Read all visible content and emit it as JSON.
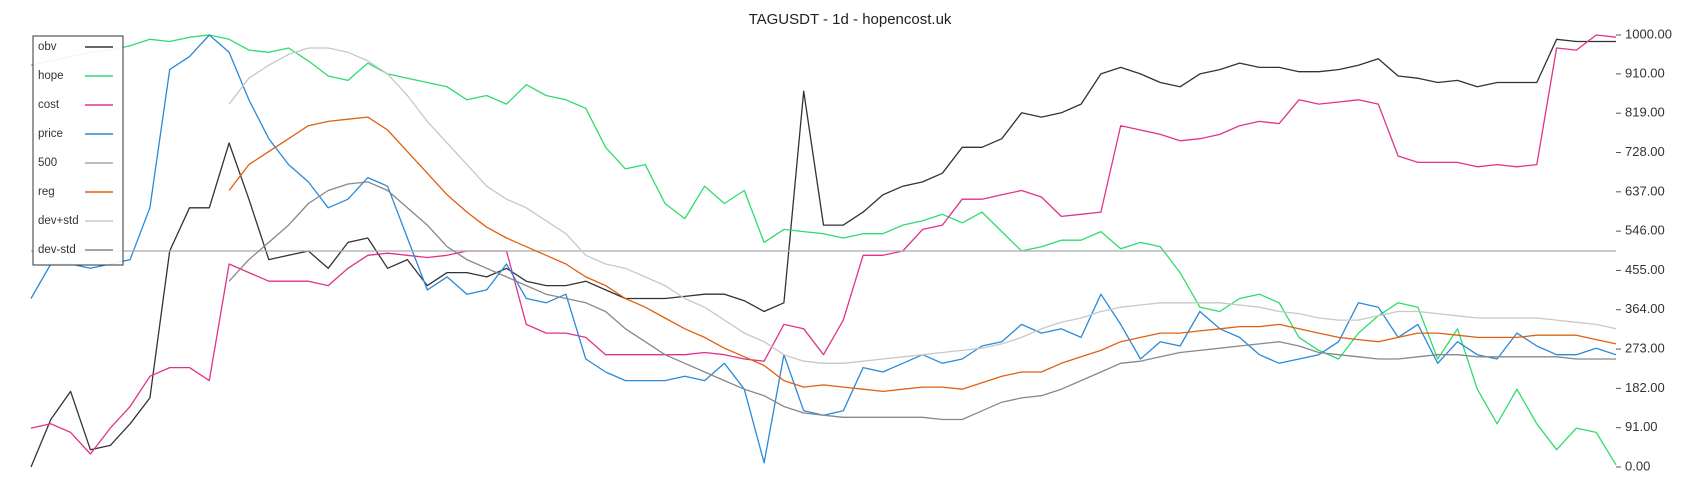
{
  "chart_data": {
    "type": "line",
    "title": "TAGUSDT - 1d - hopencost.uk",
    "ylim": [
      0,
      1000
    ],
    "yticks": [
      {
        "value": 0,
        "label": "0.00"
      },
      {
        "value": 91,
        "label": "91.00"
      },
      {
        "value": 182,
        "label": "182.00"
      },
      {
        "value": 273,
        "label": "273.00"
      },
      {
        "value": 364,
        "label": "364.00"
      },
      {
        "value": 455,
        "label": "455.00"
      },
      {
        "value": 546,
        "label": "546.00"
      },
      {
        "value": 637,
        "label": "637.00"
      },
      {
        "value": 728,
        "label": "728.00"
      },
      {
        "value": 819,
        "label": "819.00"
      },
      {
        "value": 910,
        "label": "910.00"
      },
      {
        "value": 1000,
        "label": "1000.00"
      }
    ],
    "grid": false,
    "legend": "upper left",
    "series": [
      {
        "name": "obv",
        "color": "#333333",
        "values": [
          0,
          110,
          175,
          40,
          50,
          100,
          160,
          500,
          600,
          600,
          750,
          620,
          480,
          490,
          500,
          460,
          520,
          530,
          460,
          480,
          420,
          450,
          450,
          440,
          460,
          430,
          420,
          420,
          430,
          410,
          390,
          390,
          390,
          395,
          400,
          400,
          385,
          360,
          380,
          870,
          560,
          560,
          590,
          630,
          650,
          660,
          680,
          740,
          740,
          760,
          820,
          810,
          820,
          840,
          910,
          925,
          910,
          890,
          880,
          910,
          920,
          935,
          925,
          925,
          915,
          915,
          920,
          930,
          945,
          905,
          900,
          890,
          895,
          880,
          890,
          890,
          890,
          990,
          985,
          985,
          985
        ]
      },
      {
        "name": "hope",
        "color": "#2edc6e",
        "values": [
          930,
          940,
          950,
          960,
          965,
          975,
          990,
          985,
          995,
          1000,
          990,
          965,
          960,
          970,
          940,
          905,
          895,
          935,
          910,
          900,
          890,
          880,
          850,
          860,
          840,
          885,
          860,
          850,
          830,
          740,
          690,
          700,
          610,
          575,
          650,
          610,
          640,
          520,
          550,
          545,
          540,
          530,
          540,
          540,
          560,
          570,
          585,
          565,
          590,
          545,
          500,
          510,
          525,
          525,
          545,
          505,
          520,
          510,
          450,
          370,
          360,
          390,
          400,
          380,
          300,
          270,
          250,
          310,
          350,
          380,
          370,
          250,
          320,
          180,
          100,
          180,
          100,
          40,
          90,
          80,
          5
        ]
      },
      {
        "name": "cost",
        "color": "#e0338a",
        "values": [
          90,
          100,
          80,
          30,
          90,
          140,
          210,
          230,
          230,
          200,
          470,
          450,
          430,
          430,
          430,
          420,
          460,
          490,
          495,
          490,
          485,
          490,
          500,
          500,
          500,
          330,
          310,
          310,
          300,
          260,
          260,
          260,
          260,
          260,
          265,
          260,
          250,
          245,
          330,
          320,
          260,
          340,
          490,
          490,
          500,
          550,
          560,
          620,
          620,
          630,
          640,
          625,
          580,
          585,
          590,
          790,
          780,
          770,
          755,
          760,
          770,
          790,
          800,
          795,
          850,
          840,
          845,
          850,
          840,
          720,
          705,
          705,
          705,
          695,
          700,
          695,
          700,
          970,
          965,
          1000,
          995
        ]
      },
      {
        "name": "price",
        "color": "#2a8ad8",
        "values": [
          390,
          470,
          470,
          460,
          470,
          480,
          600,
          920,
          950,
          1000,
          960,
          850,
          760,
          700,
          660,
          600,
          620,
          670,
          650,
          530,
          410,
          440,
          400,
          410,
          470,
          390,
          380,
          400,
          250,
          220,
          200,
          200,
          200,
          210,
          200,
          240,
          180,
          10,
          260,
          130,
          120,
          130,
          230,
          220,
          240,
          260,
          240,
          250,
          280,
          290,
          330,
          310,
          320,
          300,
          400,
          330,
          250,
          290,
          280,
          360,
          320,
          300,
          260,
          240,
          250,
          260,
          290,
          380,
          370,
          300,
          330,
          240,
          290,
          260,
          250,
          310,
          280,
          260,
          260,
          275,
          260
        ]
      },
      {
        "name": "500",
        "color": "#aaaaaa",
        "values": [
          500,
          500,
          500,
          500,
          500,
          500,
          500,
          500,
          500,
          500,
          500,
          500,
          500,
          500,
          500,
          500,
          500,
          500,
          500,
          500,
          500,
          500,
          500,
          500,
          500,
          500,
          500,
          500,
          500,
          500,
          500,
          500,
          500,
          500,
          500,
          500,
          500,
          500,
          500,
          500,
          500,
          500,
          500,
          500,
          500,
          500,
          500,
          500,
          500,
          500,
          500,
          500,
          500,
          500,
          500,
          500,
          500,
          500,
          500,
          500,
          500,
          500,
          500,
          500,
          500,
          500,
          500,
          500,
          500,
          500,
          500,
          500,
          500,
          500,
          500,
          500,
          500,
          500,
          500,
          500,
          500
        ]
      },
      {
        "name": "reg",
        "color": "#e06010",
        "values": [
          null,
          null,
          null,
          null,
          null,
          null,
          null,
          null,
          null,
          null,
          640,
          700,
          730,
          760,
          790,
          800,
          805,
          810,
          780,
          730,
          680,
          630,
          590,
          555,
          530,
          510,
          490,
          470,
          440,
          420,
          390,
          370,
          345,
          320,
          300,
          275,
          255,
          235,
          200,
          185,
          190,
          185,
          180,
          175,
          180,
          185,
          185,
          180,
          195,
          210,
          220,
          220,
          240,
          255,
          270,
          290,
          300,
          310,
          310,
          315,
          320,
          325,
          325,
          330,
          320,
          310,
          300,
          295,
          290,
          300,
          310,
          310,
          305,
          300,
          300,
          300,
          305,
          305,
          305,
          295,
          285
        ]
      },
      {
        "name": "dev+std",
        "color": "#c8c8c8",
        "values": [
          null,
          null,
          null,
          null,
          null,
          null,
          null,
          null,
          null,
          null,
          840,
          900,
          930,
          955,
          970,
          970,
          960,
          940,
          910,
          860,
          800,
          750,
          700,
          650,
          620,
          600,
          570,
          540,
          490,
          470,
          460,
          440,
          420,
          390,
          370,
          340,
          310,
          290,
          260,
          245,
          240,
          240,
          245,
          250,
          255,
          260,
          265,
          270,
          275,
          285,
          300,
          320,
          335,
          345,
          360,
          370,
          375,
          380,
          380,
          380,
          380,
          375,
          370,
          360,
          355,
          345,
          340,
          340,
          350,
          360,
          360,
          355,
          350,
          345,
          345,
          345,
          345,
          340,
          335,
          330,
          320
        ]
      },
      {
        "name": "dev-std",
        "color": "#888888",
        "values": [
          null,
          null,
          null,
          null,
          null,
          null,
          null,
          null,
          null,
          null,
          430,
          480,
          520,
          560,
          610,
          640,
          655,
          660,
          640,
          600,
          560,
          510,
          480,
          460,
          440,
          420,
          400,
          390,
          380,
          360,
          320,
          290,
          260,
          240,
          220,
          200,
          180,
          165,
          140,
          125,
          120,
          115,
          115,
          115,
          115,
          115,
          110,
          110,
          130,
          150,
          160,
          165,
          180,
          200,
          220,
          240,
          245,
          255,
          265,
          270,
          275,
          280,
          285,
          290,
          280,
          265,
          260,
          255,
          250,
          250,
          255,
          260,
          260,
          255,
          255,
          255,
          255,
          255,
          250,
          250,
          250
        ]
      }
    ]
  }
}
